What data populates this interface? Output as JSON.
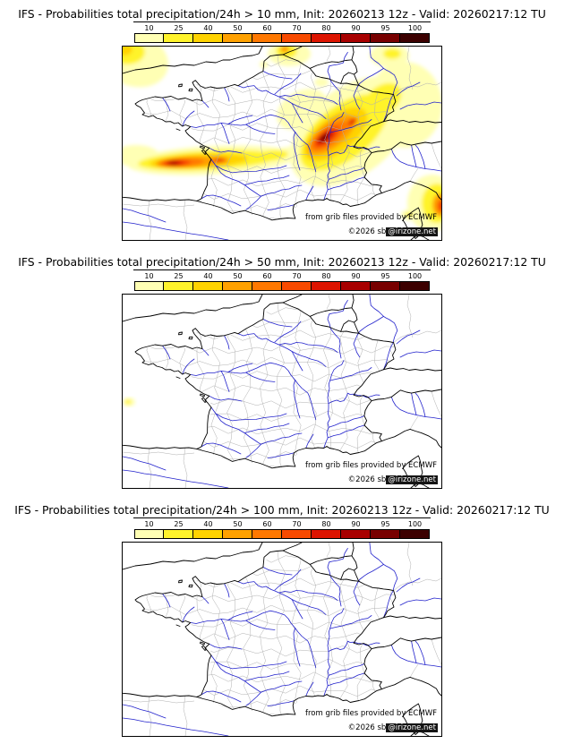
{
  "scale": {
    "labels": [
      "10",
      "25",
      "40",
      "50",
      "60",
      "70",
      "80",
      "90",
      "95",
      "100"
    ],
    "colors": [
      "#ffffb4",
      "#fff32b",
      "#ffd300",
      "#ffa100",
      "#ff7800",
      "#f84a00",
      "#dd1400",
      "#a80000",
      "#780000",
      "#3c0000"
    ]
  },
  "panels": [
    {
      "title": "IFS - Probabilities total precipitation/24h > 10 mm, Init: 20260213 12z - Valid: 20260217:12 TU"
    },
    {
      "title": "IFS - Probabilities total precipitation/24h > 50 mm, Init: 20260213 12z - Valid: 20260217:12 TU"
    },
    {
      "title": "IFS - Probabilities total precipitation/24h > 100 mm, Init: 20260213 12z - Valid: 20260217:12 TU"
    }
  ],
  "map": {
    "attribution_line1": "from grib files provided by ECMWF",
    "attribution_line2_prefix": "©2026 sb",
    "attribution_line2_badge": "@irizone.net",
    "river_color": "#2222cc",
    "admin_line_color": "#b0b0b0",
    "coast_border_color": "#000000"
  }
}
